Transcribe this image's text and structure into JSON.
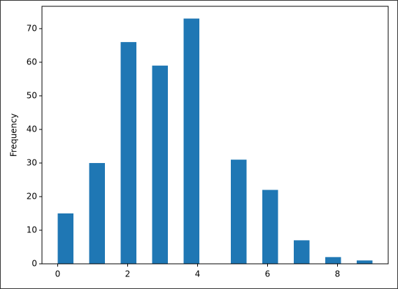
{
  "chart_data": {
    "type": "histogram",
    "y_label": "Frequency",
    "color": "#1f77b4",
    "bins": [
      0,
      0.45,
      0.9,
      1.35,
      1.8,
      2.25,
      2.7,
      3.15,
      3.6,
      4.05,
      4.5,
      4.95,
      5.4,
      5.85,
      6.3,
      6.75,
      7.2,
      7.65,
      8.1,
      8.55,
      9
    ],
    "counts": [
      15,
      0,
      30,
      0,
      66,
      0,
      59,
      0,
      73,
      0,
      0,
      31,
      0,
      22,
      0,
      7,
      0,
      2,
      0,
      1
    ],
    "xlim": [
      -0.45,
      9.45
    ],
    "xticks": [
      0,
      2,
      4,
      6,
      8
    ],
    "ylim": [
      0,
      76.65
    ],
    "yticks": [
      0,
      10,
      20,
      30,
      40,
      50,
      60,
      70
    ]
  }
}
